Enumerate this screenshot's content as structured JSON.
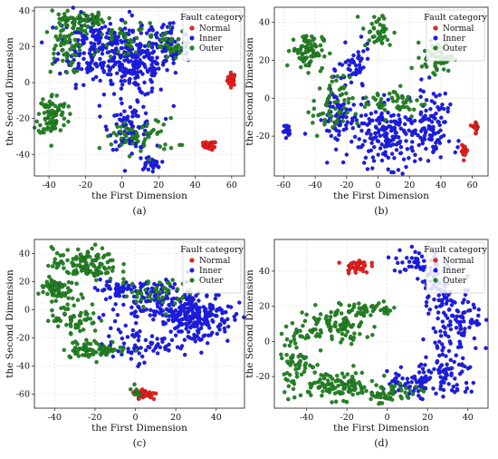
{
  "legend_title": "Fault category",
  "chart_data": [
    {
      "type": "scatter",
      "panel_label": "(a)",
      "xlabel": "the First Dimension",
      "ylabel": "the Second Dimension",
      "xlim": [
        -48,
        67
      ],
      "ylim": [
        -52,
        42
      ],
      "xticks": [
        -40,
        -20,
        0,
        20,
        40,
        60
      ],
      "yticks": [
        -40,
        -20,
        0,
        20,
        40
      ],
      "grid": true,
      "legend_position": "top-right",
      "series": [
        {
          "name": "Normal",
          "color": "#ff1a1a",
          "clusters": [
            {
              "x": 60,
              "y": 2,
              "sx": 1.2,
              "sy": 1.8,
              "n": 30
            },
            {
              "x": 48,
              "y": -35,
              "sx": 1.8,
              "sy": 1.2,
              "n": 30
            }
          ]
        },
        {
          "name": "Inner",
          "color": "#1a1aff",
          "clusters": [
            {
              "x": -15,
              "y": 20,
              "sx": 10,
              "sy": 10,
              "n": 200
            },
            {
              "x": 8,
              "y": 10,
              "sx": 9,
              "sy": 9,
              "n": 200
            },
            {
              "x": 5,
              "y": -25,
              "sx": 6,
              "sy": 6,
              "n": 80
            },
            {
              "x": 15,
              "y": -45,
              "sx": 3,
              "sy": 2,
              "n": 30
            },
            {
              "x": 25,
              "y": 20,
              "sx": 6,
              "sy": 8,
              "n": 60
            }
          ]
        },
        {
          "name": "Outer",
          "color": "#1f8a1f",
          "clusters": [
            {
              "x": -38,
              "y": -18,
              "sx": 4,
              "sy": 6,
              "n": 90
            },
            {
              "x": -32,
              "y": 25,
              "sx": 5,
              "sy": 10,
              "n": 80
            },
            {
              "x": -20,
              "y": 35,
              "sx": 5,
              "sy": 2,
              "n": 40
            },
            {
              "x": 28,
              "y": 20,
              "sx": 6,
              "sy": 4,
              "n": 40
            },
            {
              "x": 10,
              "y": -30,
              "sx": 10,
              "sy": 5,
              "n": 60
            },
            {
              "x": 0,
              "y": 25,
              "sx": 10,
              "sy": 5,
              "n": 40
            }
          ]
        }
      ]
    },
    {
      "type": "scatter",
      "panel_label": "(b)",
      "xlabel": "the First Dimension",
      "ylabel": "the Second Dimension",
      "xlim": [
        -66,
        70
      ],
      "ylim": [
        -41,
        48
      ],
      "xticks": [
        -60,
        -40,
        -20,
        0,
        20,
        40,
        60
      ],
      "yticks": [
        -20,
        0,
        20,
        40
      ],
      "grid": true,
      "legend_position": "top-right",
      "series": [
        {
          "name": "Normal",
          "color": "#ff1a1a",
          "clusters": [
            {
              "x": 62,
              "y": -15,
              "sx": 1,
              "sy": 1.5,
              "n": 20
            },
            {
              "x": 55,
              "y": -28,
              "sx": 1,
              "sy": 1.5,
              "n": 20
            }
          ]
        },
        {
          "name": "Inner",
          "color": "#1a1aff",
          "clusters": [
            {
              "x": -58,
              "y": -17,
              "sx": 1,
              "sy": 1.5,
              "n": 20
            },
            {
              "x": 10,
              "y": -20,
              "sx": 15,
              "sy": 8,
              "n": 220
            },
            {
              "x": -15,
              "y": 15,
              "sx": 5,
              "sy": 6,
              "n": 50
            },
            {
              "x": -25,
              "y": -10,
              "sx": 5,
              "sy": 8,
              "n": 60
            },
            {
              "x": 35,
              "y": -10,
              "sx": 5,
              "sy": 8,
              "n": 60
            }
          ]
        },
        {
          "name": "Outer",
          "color": "#1f8a1f",
          "clusters": [
            {
              "x": -45,
              "y": 25,
              "sx": 5,
              "sy": 5,
              "n": 80
            },
            {
              "x": -30,
              "y": -5,
              "sx": 6,
              "sy": 8,
              "n": 60
            },
            {
              "x": 0,
              "y": 35,
              "sx": 5,
              "sy": 5,
              "n": 40
            },
            {
              "x": 38,
              "y": 22,
              "sx": 5,
              "sy": 4,
              "n": 60
            },
            {
              "x": 10,
              "y": -2,
              "sx": 10,
              "sy": 4,
              "n": 50
            }
          ]
        }
      ]
    },
    {
      "type": "scatter",
      "panel_label": "(c)",
      "xlabel": "the First Dimension",
      "ylabel": "the Second Dimension",
      "xlim": [
        -50,
        54
      ],
      "ylim": [
        -70,
        50
      ],
      "xticks": [
        -40,
        -20,
        0,
        20,
        40
      ],
      "yticks": [
        -60,
        -40,
        -20,
        0,
        20,
        40
      ],
      "grid": true,
      "legend_position": "top-right",
      "series": [
        {
          "name": "Normal",
          "color": "#ff1a1a",
          "clusters": [
            {
              "x": 5,
              "y": -60,
              "sx": 3,
              "sy": 2,
              "n": 30
            }
          ]
        },
        {
          "name": "Inner",
          "color": "#1a1aff",
          "clusters": [
            {
              "x": 30,
              "y": -5,
              "sx": 9,
              "sy": 10,
              "n": 220
            },
            {
              "x": 10,
              "y": 5,
              "sx": 10,
              "sy": 8,
              "n": 120
            },
            {
              "x": 0,
              "y": -25,
              "sx": 8,
              "sy": 6,
              "n": 60
            },
            {
              "x": -10,
              "y": 15,
              "sx": 5,
              "sy": 5,
              "n": 40
            }
          ]
        },
        {
          "name": "Outer",
          "color": "#1f8a1f",
          "clusters": [
            {
              "x": -40,
              "y": 15,
              "sx": 4,
              "sy": 4,
              "n": 60
            },
            {
              "x": -25,
              "y": 32,
              "sx": 8,
              "sy": 6,
              "n": 120
            },
            {
              "x": -30,
              "y": -5,
              "sx": 6,
              "sy": 6,
              "n": 60
            },
            {
              "x": -20,
              "y": -28,
              "sx": 8,
              "sy": 3,
              "n": 70
            },
            {
              "x": 10,
              "y": 12,
              "sx": 8,
              "sy": 5,
              "n": 50
            },
            {
              "x": 0,
              "y": -58,
              "sx": 1,
              "sy": 2,
              "n": 10
            }
          ]
        }
      ]
    },
    {
      "type": "scatter",
      "panel_label": "(d)",
      "xlabel": "the First Dimension",
      "ylabel": "the Second Dimension",
      "xlim": [
        -56,
        50
      ],
      "ylim": [
        -38,
        58
      ],
      "xticks": [
        -40,
        -20,
        0,
        20,
        40
      ],
      "yticks": [
        -20,
        0,
        20,
        40
      ],
      "grid": true,
      "legend_position": "top-right",
      "series": [
        {
          "name": "Normal",
          "color": "#ff1a1a",
          "clusters": [
            {
              "x": -15,
              "y": 43,
              "sx": 3,
              "sy": 2,
              "n": 40
            }
          ]
        },
        {
          "name": "Inner",
          "color": "#1a1aff",
          "clusters": [
            {
              "x": 15,
              "y": 45,
              "sx": 6,
              "sy": 5,
              "n": 50
            },
            {
              "x": 25,
              "y": 30,
              "sx": 4,
              "sy": 6,
              "n": 50
            },
            {
              "x": 35,
              "y": 10,
              "sx": 6,
              "sy": 10,
              "n": 100
            },
            {
              "x": 30,
              "y": -20,
              "sx": 8,
              "sy": 7,
              "n": 80
            },
            {
              "x": 10,
              "y": -25,
              "sx": 8,
              "sy": 4,
              "n": 50
            }
          ]
        },
        {
          "name": "Outer",
          "color": "#1f8a1f",
          "clusters": [
            {
              "x": -25,
              "y": 10,
              "sx": 10,
              "sy": 5,
              "n": 90
            },
            {
              "x": -45,
              "y": -10,
              "sx": 4,
              "sy": 8,
              "n": 70
            },
            {
              "x": -25,
              "y": -25,
              "sx": 10,
              "sy": 4,
              "n": 100
            },
            {
              "x": 0,
              "y": -30,
              "sx": 8,
              "sy": 3,
              "n": 60
            },
            {
              "x": -10,
              "y": 18,
              "sx": 8,
              "sy": 2,
              "n": 40
            }
          ]
        }
      ]
    }
  ]
}
